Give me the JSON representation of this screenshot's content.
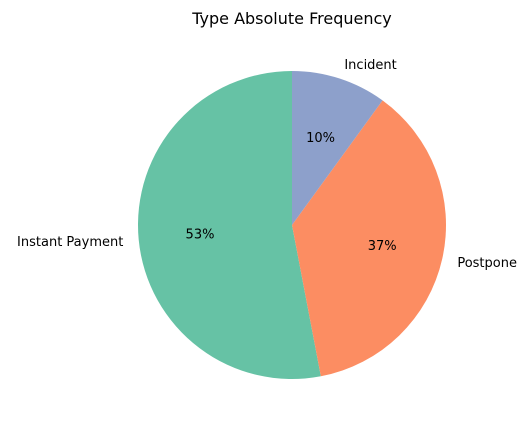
{
  "chart_data": {
    "type": "pie",
    "title": "Type Absolute Frequency",
    "labels": [
      "Instant Payment",
      "Postpone",
      "Incident"
    ],
    "values": [
      53,
      37,
      10
    ],
    "percent_labels": [
      "53%",
      "37%",
      "10%"
    ],
    "colors": [
      "#66c2a5",
      "#fc8d62",
      "#8da0cb"
    ]
  }
}
